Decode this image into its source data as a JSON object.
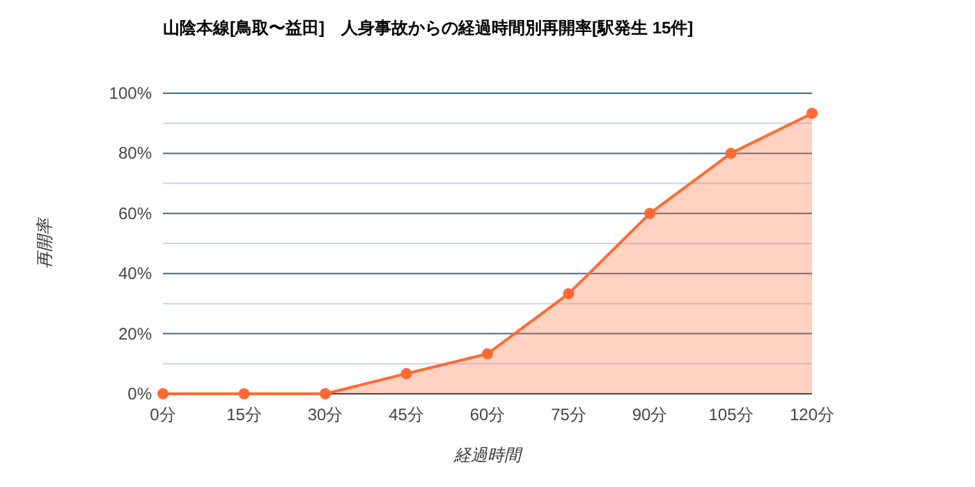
{
  "chart_data": {
    "type": "area",
    "title": "山陰本線[鳥取〜益田]　人身事故からの経過時間別再開率[駅発生 15件]",
    "xlabel": "経過時間",
    "ylabel": "再開率",
    "categories": [
      "0分",
      "15分",
      "30分",
      "45分",
      "60分",
      "75分",
      "90分",
      "105分",
      "120分"
    ],
    "series": [
      {
        "color": "#ff6a33",
        "values": [
          0,
          0,
          0,
          6.7,
          13.3,
          33.3,
          60,
          80,
          93.3
        ]
      }
    ],
    "ylim": [
      0,
      100
    ],
    "yticks": [
      {
        "value": 0,
        "label": "0%"
      },
      {
        "value": 10,
        "label": null
      },
      {
        "value": 20,
        "label": "20%"
      },
      {
        "value": 30,
        "label": null
      },
      {
        "value": 40,
        "label": "40%"
      },
      {
        "value": 50,
        "label": null
      },
      {
        "value": 60,
        "label": "60%"
      },
      {
        "value": 70,
        "label": null
      },
      {
        "value": 80,
        "label": "80%"
      },
      {
        "value": 90,
        "label": null
      },
      {
        "value": 100,
        "label": "100%"
      }
    ],
    "grid": "y",
    "marker": "circle"
  }
}
